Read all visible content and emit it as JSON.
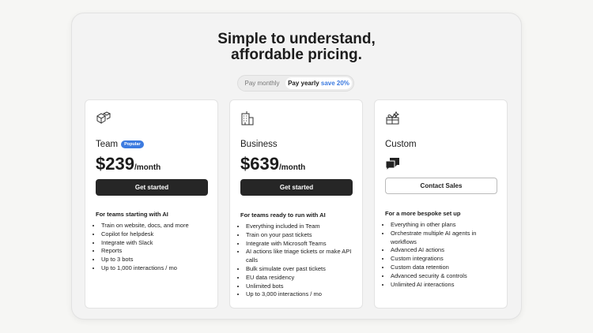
{
  "header": {
    "title_lines": [
      "Simple to understand,",
      "affordable pricing."
    ]
  },
  "toggle": {
    "monthly": "Pay monthly",
    "yearly": "Pay yearly",
    "save": "save 20%"
  },
  "plans": [
    {
      "name": "Team",
      "badge": "Popular",
      "price": "$239",
      "period": "/month",
      "button": "Get started",
      "heading": "For teams starting with AI",
      "features": [
        "Train on website, docs, and more",
        "Copilot for helpdesk",
        "Integrate with Slack",
        "Reports",
        "Up to 3 bots",
        "Up to 1,000 interactions / mo"
      ]
    },
    {
      "name": "Business",
      "price": "$639",
      "period": "/month",
      "button": "Get started",
      "heading": "For teams ready to run with AI",
      "features": [
        "Everything included in Team",
        "Train on your past tickets",
        "Integrate with Microsoft Teams",
        "AI actions like triage tickets or make API calls",
        "Bulk simulate over past tickets",
        "EU data residency",
        "Unlimited bots",
        "Up to 3,000 interactions / mo"
      ]
    },
    {
      "name": "Custom",
      "button": "Contact Sales",
      "heading": "For a more bespoke set up",
      "features": [
        "Everything in other plans",
        "Orchestrate multiple AI agents in workflows",
        "Advanced AI actions",
        "Custom integrations",
        "Custom data retention",
        "Advanced security & controls",
        "Unlimited AI interactions"
      ]
    }
  ]
}
